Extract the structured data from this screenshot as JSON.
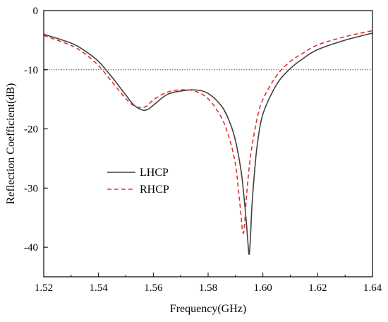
{
  "chart_data": {
    "type": "line",
    "title": "",
    "xlabel": "Frequency(GHz)",
    "ylabel": "Reflection Coefficient(dB)",
    "xlim": [
      1.52,
      1.64
    ],
    "ylim": [
      -45,
      0
    ],
    "x_ticks": [
      "1.52",
      "1.54",
      "1.56",
      "1.58",
      "1.60",
      "1.62",
      "1.64"
    ],
    "y_ticks": [
      "0",
      "-10",
      "-20",
      "-30",
      "-40"
    ],
    "grid": false,
    "reference_line": {
      "y": -10,
      "style": "dotted"
    },
    "legend_position": "middle-left",
    "series": [
      {
        "name": "LHCP",
        "color": "#404040",
        "line_style": "solid",
        "x": [
          1.52,
          1.53,
          1.535,
          1.54,
          1.545,
          1.55,
          1.553,
          1.556,
          1.558,
          1.56,
          1.565,
          1.57,
          1.575,
          1.58,
          1.585,
          1.588,
          1.59,
          1.592,
          1.593,
          1.594,
          1.5945,
          1.595,
          1.5955,
          1.596,
          1.597,
          1.598,
          1.6,
          1.605,
          1.61,
          1.615,
          1.62,
          1.63,
          1.64
        ],
        "y": [
          -4.0,
          -5.5,
          -6.8,
          -8.6,
          -11.3,
          -14.3,
          -16.0,
          -16.8,
          -16.7,
          -16.0,
          -14.2,
          -13.6,
          -13.4,
          -14.0,
          -16.2,
          -19.0,
          -22.0,
          -27.0,
          -31.0,
          -36.0,
          -39.0,
          -41.2,
          -38.0,
          -33.0,
          -27.0,
          -22.5,
          -17.5,
          -12.5,
          -9.8,
          -8.0,
          -6.6,
          -5.0,
          -3.8
        ]
      },
      {
        "name": "RHCP",
        "color": "#e03030",
        "line_style": "dashed",
        "x": [
          1.52,
          1.53,
          1.535,
          1.54,
          1.545,
          1.55,
          1.553,
          1.556,
          1.558,
          1.56,
          1.565,
          1.57,
          1.575,
          1.58,
          1.585,
          1.588,
          1.59,
          1.591,
          1.592,
          1.5925,
          1.593,
          1.5935,
          1.594,
          1.595,
          1.596,
          1.598,
          1.6,
          1.605,
          1.61,
          1.615,
          1.62,
          1.63,
          1.64
        ],
        "y": [
          -4.2,
          -5.9,
          -7.3,
          -9.3,
          -12.1,
          -14.9,
          -16.1,
          -16.4,
          -16.0,
          -15.1,
          -13.8,
          -13.4,
          -13.6,
          -14.9,
          -18.2,
          -22.0,
          -26.0,
          -30.0,
          -34.5,
          -37.0,
          -37.5,
          -35.0,
          -31.5,
          -26.5,
          -23.0,
          -18.0,
          -15.0,
          -11.0,
          -8.6,
          -7.1,
          -5.8,
          -4.4,
          -3.4
        ]
      }
    ]
  }
}
